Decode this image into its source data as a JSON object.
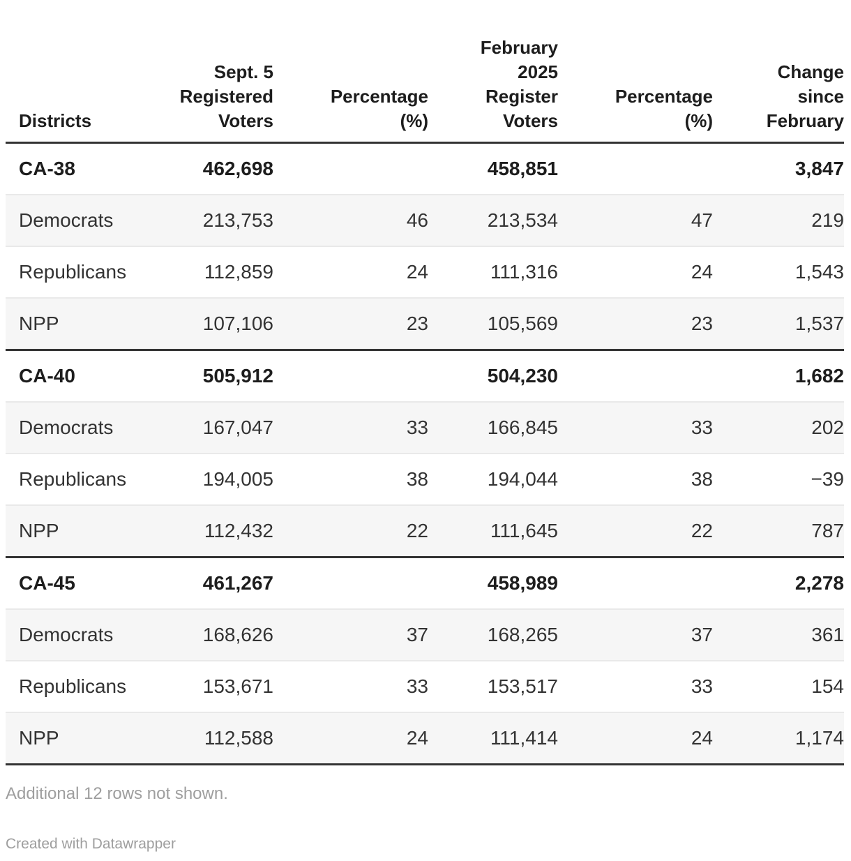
{
  "colors": {
    "text": "#333333",
    "heading_text": "#1d1d1d",
    "stripe": "#f6f6f6",
    "rule_dark": "#333333",
    "rule_light": "#e9e9e9",
    "muted_text": "#9e9e9e"
  },
  "table": {
    "columns": [
      {
        "label": "Districts"
      },
      {
        "label": "Sept. 5\nRegistered\nVoters"
      },
      {
        "label": "Percentage\n(%)"
      },
      {
        "label": "February\n2025\nRegister\nVoters"
      },
      {
        "label": "Percentage\n(%)"
      },
      {
        "label": "Change\nsince\nFebruary"
      }
    ],
    "sections": [
      {
        "district": {
          "name": "CA-38",
          "sept_voters": "462,698",
          "feb_voters": "458,851",
          "change": "3,847"
        },
        "parties": [
          {
            "name": "Democrats",
            "sept_voters": "213,753",
            "sept_pct": "46",
            "feb_voters": "213,534",
            "feb_pct": "47",
            "change": "219"
          },
          {
            "name": "Republicans",
            "sept_voters": "112,859",
            "sept_pct": "24",
            "feb_voters": "111,316",
            "feb_pct": "24",
            "change": "1,543"
          },
          {
            "name": "NPP",
            "sept_voters": "107,106",
            "sept_pct": "23",
            "feb_voters": "105,569",
            "feb_pct": "23",
            "change": "1,537"
          }
        ]
      },
      {
        "district": {
          "name": "CA-40",
          "sept_voters": "505,912",
          "feb_voters": "504,230",
          "change": "1,682"
        },
        "parties": [
          {
            "name": "Democrats",
            "sept_voters": "167,047",
            "sept_pct": "33",
            "feb_voters": "166,845",
            "feb_pct": "33",
            "change": "202"
          },
          {
            "name": "Republicans",
            "sept_voters": "194,005",
            "sept_pct": "38",
            "feb_voters": "194,044",
            "feb_pct": "38",
            "change": "−39"
          },
          {
            "name": "NPP",
            "sept_voters": "112,432",
            "sept_pct": "22",
            "feb_voters": "111,645",
            "feb_pct": "22",
            "change": "787"
          }
        ]
      },
      {
        "district": {
          "name": "CA-45",
          "sept_voters": "461,267",
          "feb_voters": "458,989",
          "change": "2,278"
        },
        "parties": [
          {
            "name": "Democrats",
            "sept_voters": "168,626",
            "sept_pct": "37",
            "feb_voters": "168,265",
            "feb_pct": "37",
            "change": "361"
          },
          {
            "name": "Republicans",
            "sept_voters": "153,671",
            "sept_pct": "33",
            "feb_voters": "153,517",
            "feb_pct": "33",
            "change": "154"
          },
          {
            "name": "NPP",
            "sept_voters": "112,588",
            "sept_pct": "24",
            "feb_voters": "111,414",
            "feb_pct": "24",
            "change": "1,174"
          }
        ]
      }
    ]
  },
  "footer": {
    "note": "Additional 12 rows not shown.",
    "attribution": "Created with Datawrapper"
  },
  "chart_data": {
    "type": "table",
    "columns": [
      "Districts",
      "Sept. 5 Registered Voters",
      "Percentage (%)",
      "February 2025 Register Voters",
      "Percentage (%)",
      "Change since February"
    ],
    "rows": [
      [
        "CA-38",
        462698,
        null,
        458851,
        null,
        3847
      ],
      [
        "Democrats",
        213753,
        46,
        213534,
        47,
        219
      ],
      [
        "Republicans",
        112859,
        24,
        111316,
        24,
        1543
      ],
      [
        "NPP",
        107106,
        23,
        105569,
        23,
        1537
      ],
      [
        "CA-40",
        505912,
        null,
        504230,
        null,
        1682
      ],
      [
        "Democrats",
        167047,
        33,
        166845,
        33,
        202
      ],
      [
        "Republicans",
        194005,
        38,
        194044,
        38,
        -39
      ],
      [
        "NPP",
        112432,
        22,
        111645,
        22,
        787
      ],
      [
        "CA-45",
        461267,
        null,
        458989,
        null,
        2278
      ],
      [
        "Democrats",
        168626,
        37,
        168265,
        37,
        361
      ],
      [
        "Republicans",
        153671,
        33,
        153517,
        33,
        154
      ],
      [
        "NPP",
        112588,
        24,
        111414,
        24,
        1174
      ]
    ],
    "row_styles": [
      "district",
      "party",
      "party",
      "party",
      "district",
      "party",
      "party",
      "party",
      "district",
      "party",
      "party",
      "party"
    ],
    "note": "Additional 12 rows not shown.",
    "attribution": "Created with Datawrapper"
  }
}
